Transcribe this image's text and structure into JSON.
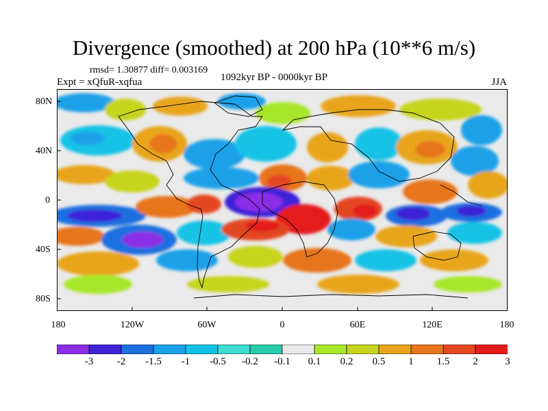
{
  "title": "Divergence (smoothed) at 200 hPa (10**6 m/s)",
  "stats": "rmsd= 1.30877 diff= 0.003169",
  "experiment": "Expt = xQfuR-xqfua",
  "period": "1092kyr BP - 0000kyr BP",
  "season": "JJA",
  "y_axis_labels": [
    "80N",
    "40N",
    "0",
    "40S",
    "80S"
  ],
  "x_axis_labels": [
    "180",
    "120W",
    "60W",
    "0",
    "60E",
    "120E",
    "180"
  ],
  "colorbar": {
    "labels": [
      "-3",
      "-2",
      "-1.5",
      "-1",
      "-0.5",
      "-0.2",
      "-0.1",
      "0.1",
      "0.2",
      "0.5",
      "1",
      "1.5",
      "2",
      "3"
    ],
    "colors": [
      "#8b2ee8",
      "#3e22d8",
      "#1f6fe0",
      "#1aa1e8",
      "#13c3e6",
      "#3fdcd2",
      "#28ccab",
      "#eaeaea",
      "#a8e62a",
      "#c6d41e",
      "#e8a51a",
      "#e7751c",
      "#e34620",
      "#e41b1b"
    ]
  }
}
